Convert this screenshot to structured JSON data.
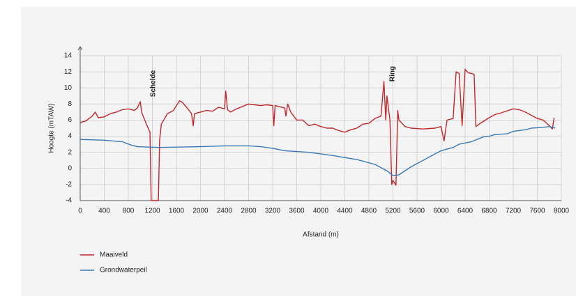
{
  "chart_data": {
    "type": "line",
    "xlabel": "Afstand (m)",
    "ylabel": "Hoogte (mTAW)",
    "xlim": [
      0,
      8000
    ],
    "ylim": [
      -4,
      14
    ],
    "xticks": [
      0,
      400,
      800,
      1200,
      1600,
      2000,
      2400,
      2800,
      3200,
      3600,
      4000,
      4400,
      4800,
      5200,
      5600,
      6000,
      6400,
      6800,
      7200,
      7600,
      8000
    ],
    "yticks": [
      -4,
      -2,
      0,
      2,
      4,
      6,
      8,
      10,
      12,
      14
    ],
    "grid": true,
    "legend": "bottom-left",
    "annotations": [
      "Schelde",
      "Ring"
    ],
    "series": [
      {
        "name": "Maaiveld",
        "color": "#c0282d",
        "x": [
          0,
          100,
          150,
          200,
          250,
          300,
          400,
          500,
          600,
          700,
          800,
          900,
          950,
          1000,
          1020,
          1100,
          1160,
          1180,
          1200,
          1300,
          1320,
          1350,
          1450,
          1550,
          1650,
          1700,
          1800,
          1850,
          1880,
          1900,
          2000,
          2100,
          2200,
          2300,
          2400,
          2420,
          2450,
          2500,
          2600,
          2700,
          2800,
          2900,
          3000,
          3100,
          3200,
          3220,
          3240,
          3400,
          3420,
          3450,
          3500,
          3600,
          3700,
          3800,
          3900,
          4000,
          4100,
          4200,
          4300,
          4400,
          4500,
          4600,
          4700,
          4800,
          4900,
          5000,
          5050,
          5080,
          5100,
          5150,
          5180,
          5200,
          5250,
          5280,
          5300,
          5400,
          5500,
          5700,
          5900,
          6000,
          6050,
          6100,
          6200,
          6250,
          6300,
          6350,
          6400,
          6450,
          6550,
          6580,
          6650,
          6800,
          6900,
          7000,
          7200,
          7300,
          7400,
          7500,
          7600,
          7700,
          7800,
          7850,
          7880
        ],
        "values": [
          5.7,
          5.9,
          6.2,
          6.5,
          7.0,
          6.3,
          6.4,
          6.8,
          7.0,
          7.3,
          7.4,
          7.2,
          7.5,
          8.3,
          7.0,
          5.5,
          4.5,
          -4,
          -4,
          -4,
          3.5,
          5.5,
          6.8,
          7.2,
          8.4,
          8.2,
          7.3,
          6.8,
          5.3,
          6.8,
          7.0,
          7.2,
          7.1,
          7.6,
          7.4,
          9.6,
          7.3,
          7.0,
          7.4,
          7.7,
          8.0,
          7.9,
          7.8,
          7.9,
          7.8,
          5.3,
          7.8,
          7.5,
          6.5,
          8.0,
          7.0,
          6.0,
          6.0,
          5.3,
          5.5,
          5.2,
          5.0,
          5.0,
          4.7,
          4.5,
          4.8,
          5.0,
          5.5,
          5.6,
          6.2,
          6.5,
          10.8,
          6.0,
          9.0,
          6.0,
          -2.0,
          -1.5,
          -2.1,
          7.2,
          6.0,
          5.2,
          5.0,
          4.9,
          5.0,
          5.2,
          3.4,
          6.0,
          6.2,
          12.0,
          11.8,
          5.3,
          12.3,
          11.9,
          11.7,
          5.2,
          5.6,
          6.3,
          6.7,
          6.9,
          7.4,
          7.3,
          7.0,
          6.6,
          6.2,
          6.0,
          5.3,
          4.9,
          6.3
        ]
      },
      {
        "name": "Grondwaterpeil",
        "color": "#3a78b5",
        "x": [
          0,
          400,
          700,
          850,
          950,
          1300,
          2000,
          2400,
          2800,
          3000,
          3200,
          3400,
          3800,
          4200,
          4600,
          4900,
          5100,
          5200,
          5300,
          5500,
          5800,
          6000,
          6200,
          6300,
          6500,
          6700,
          6800,
          6900,
          7100,
          7200,
          7400,
          7500,
          7700,
          7800,
          7900
        ],
        "values": [
          3.6,
          3.5,
          3.3,
          2.9,
          2.7,
          2.6,
          2.7,
          2.8,
          2.8,
          2.7,
          2.5,
          2.2,
          2.0,
          1.6,
          1.1,
          0.5,
          -0.3,
          -0.9,
          -0.8,
          0.2,
          1.4,
          2.2,
          2.6,
          3.0,
          3.3,
          3.9,
          4.0,
          4.2,
          4.3,
          4.6,
          4.8,
          5.0,
          5.1,
          5.2,
          5.0
        ]
      }
    ]
  }
}
